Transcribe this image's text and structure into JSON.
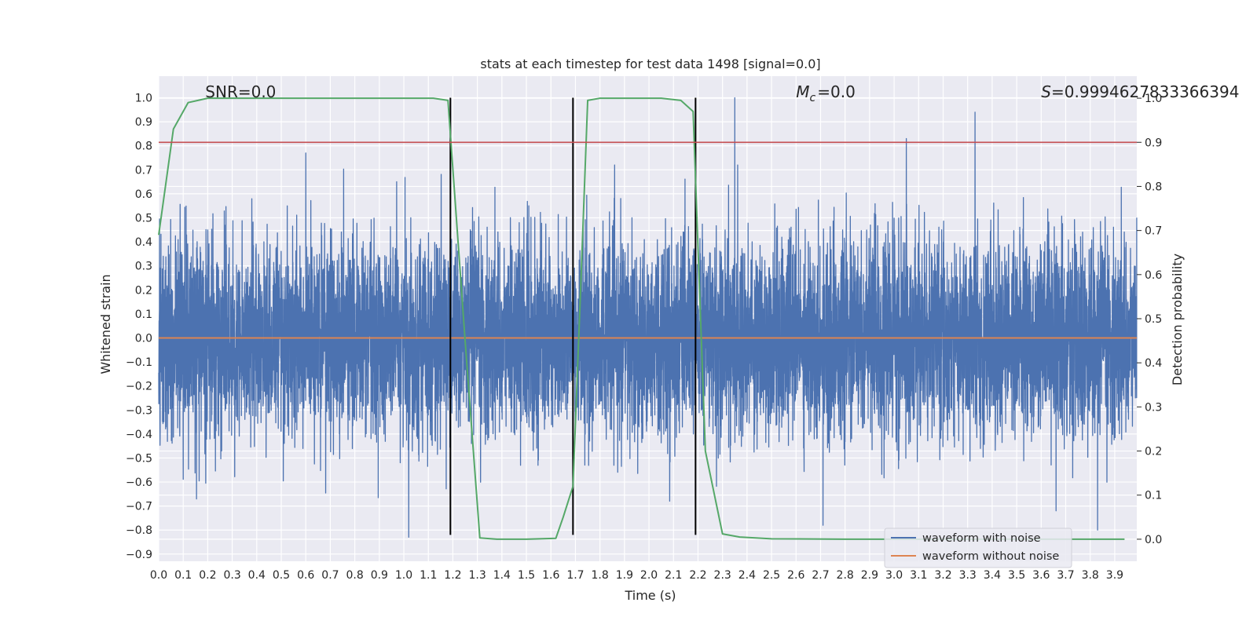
{
  "chart_data": {
    "type": "line",
    "title": "stats at each timestep for test data 1498 [signal=0.0]",
    "xlabel": "Time (s)",
    "ylabel": "Whitened strain",
    "y2label": "Detection probability",
    "xlim": [
      0.0,
      3.99
    ],
    "ylim": [
      -0.93,
      1.09
    ],
    "y2lim": [
      -0.05,
      1.05
    ],
    "x_ticks": [
      "0.0",
      "0.1",
      "0.2",
      "0.3",
      "0.4",
      "0.5",
      "0.6",
      "0.7",
      "0.8",
      "0.9",
      "1.0",
      "1.1",
      "1.2",
      "1.3",
      "1.4",
      "1.5",
      "1.6",
      "1.7",
      "1.8",
      "1.9",
      "2.0",
      "2.1",
      "2.2",
      "2.3",
      "2.4",
      "2.5",
      "2.6",
      "2.7",
      "2.8",
      "2.9",
      "3.0",
      "3.1",
      "3.2",
      "3.3",
      "3.4",
      "3.5",
      "3.6",
      "3.7",
      "3.8",
      "3.9"
    ],
    "y_ticks": [
      "1.0",
      "0.9",
      "0.8",
      "0.7",
      "0.6",
      "0.5",
      "0.4",
      "0.3",
      "0.2",
      "0.1",
      "0.0",
      "−0.1",
      "−0.2",
      "−0.3",
      "−0.4",
      "−0.5",
      "−0.6",
      "−0.7",
      "−0.8",
      "−0.9"
    ],
    "y2_ticks": [
      "1.0",
      "0.9",
      "0.8",
      "0.7",
      "0.6",
      "0.5",
      "0.4",
      "0.3",
      "0.2",
      "0.1",
      "0.0"
    ],
    "grid": true,
    "legend_position": "lower-right",
    "series": [
      {
        "name": "waveform with noise",
        "color": "#4c72b0",
        "axis": "left",
        "kind": "noise",
        "sample_rate": 2048,
        "amplitude_sigma": 0.2,
        "notable_peaks": [
          {
            "x": 0.6,
            "y": 0.77
          },
          {
            "x": 1.02,
            "y": -0.83
          },
          {
            "x": 2.35,
            "y": 1.0
          },
          {
            "x": 2.71,
            "y": -0.78
          },
          {
            "x": 3.05,
            "y": 0.83
          },
          {
            "x": 3.33,
            "y": 0.94
          },
          {
            "x": 3.83,
            "y": -0.8
          }
        ]
      },
      {
        "name": "waveform without noise",
        "color": "#dd8452",
        "axis": "left",
        "x": [
          0.0,
          3.99
        ],
        "y": [
          0.0,
          0.0
        ]
      },
      {
        "color": "#55a868",
        "axis": "right",
        "x": [
          0.0,
          0.06,
          0.12,
          0.2,
          0.3,
          0.5,
          0.8,
          1.0,
          1.12,
          1.18,
          1.25,
          1.31,
          1.38,
          1.5,
          1.62,
          1.65,
          1.69,
          1.72,
          1.75,
          1.8,
          1.9,
          2.05,
          2.13,
          2.18,
          2.23,
          2.3,
          2.37,
          2.5,
          2.8,
          3.2,
          3.6,
          3.94
        ],
        "y": [
          0.69,
          0.93,
          0.99,
          1.0,
          1.0,
          1.0,
          1.0,
          1.0,
          1.0,
          0.995,
          0.45,
          0.003,
          0.0,
          0.0,
          0.002,
          0.05,
          0.12,
          0.55,
          0.995,
          1.0,
          1.0,
          1.0,
          0.995,
          0.97,
          0.2,
          0.012,
          0.005,
          0.001,
          0.0,
          0.0,
          0.0,
          0.0
        ]
      }
    ],
    "threshold": {
      "axis": "right",
      "y": 0.9,
      "color": "#c44e52"
    },
    "vlines": [
      {
        "x": 1.19
      },
      {
        "x": 1.69
      },
      {
        "x": 2.19
      }
    ],
    "vline_range": [
      -0.82,
      1.0
    ],
    "vline_color": "#000000",
    "annotations": {
      "snr": {
        "label": "SNR=0.0",
        "x": 0.19
      },
      "mc": {
        "label": "=0.0",
        "x": 2.6
      },
      "s": {
        "label": "=0.9994627833366394",
        "x": 3.6
      }
    }
  }
}
